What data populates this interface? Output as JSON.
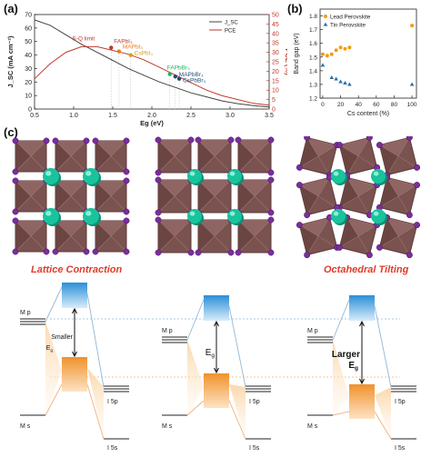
{
  "panels": {
    "a": "(a)",
    "b": "(b)",
    "c": "(c)"
  },
  "chart_data": [
    {
      "type": "line",
      "xlabel": "Eg (eV)",
      "ylabel_left": "J_SC (mA cm⁻²)",
      "ylabel_right": "PCE (%)",
      "xlim": [
        0.5,
        3.5
      ],
      "ylim_left": [
        0,
        70
      ],
      "ylim_right": [
        0,
        50
      ],
      "xticks": [
        "0.5",
        "1.0",
        "1.5",
        "2.0",
        "2.5",
        "3.0",
        "3.5"
      ],
      "yticks_left": [
        "0",
        "10",
        "20",
        "30",
        "40",
        "50",
        "60",
        "70"
      ],
      "yticks_right": [
        "0",
        "5",
        "10",
        "15",
        "20",
        "25",
        "30",
        "35",
        "40",
        "45",
        "50"
      ],
      "legend": [
        "J_SC",
        "PCE"
      ],
      "series": [
        {
          "name": "J_SC",
          "color": "#444444",
          "axis": "left",
          "x": [
            0.5,
            0.7,
            0.9,
            1.1,
            1.3,
            1.5,
            1.7,
            1.9,
            2.1,
            2.3,
            2.5,
            2.7,
            2.9,
            3.1,
            3.3,
            3.5
          ],
          "y": [
            66,
            62,
            55,
            48,
            42,
            36,
            30,
            25,
            20,
            16,
            12,
            9,
            6,
            4,
            2.5,
            1.5
          ]
        },
        {
          "name": "PCE",
          "color": "#c0392b",
          "axis": "right",
          "x": [
            0.5,
            0.7,
            0.9,
            1.1,
            1.3,
            1.5,
            1.7,
            1.9,
            2.1,
            2.3,
            2.5,
            2.7,
            2.9,
            3.1,
            3.3,
            3.5
          ],
          "y": [
            16,
            24,
            30,
            33,
            33,
            31,
            29,
            26,
            22,
            18,
            14,
            10,
            7,
            5,
            3,
            2
          ]
        }
      ],
      "annotations": [
        {
          "label": "S-Q limit",
          "x": 1.34,
          "y": 33.5,
          "color": "#c0392b"
        },
        {
          "label": "FAPbI₃",
          "x": 1.48,
          "y": 32.5,
          "color": "#c0392b"
        },
        {
          "label": "MAPbI₃",
          "x": 1.58,
          "y": 30.5,
          "color": "#e67e22"
        },
        {
          "label": "CsPbI₃",
          "x": 1.73,
          "y": 28.5,
          "color": "#d4a017"
        },
        {
          "label": "FAPbBr₃",
          "x": 2.23,
          "y": 18.5,
          "color": "#27ae60"
        },
        {
          "label": "MAPbBr₃",
          "x": 2.3,
          "y": 17.2,
          "color": "#1f4e79"
        },
        {
          "label": "CsPbBr₃",
          "x": 2.35,
          "y": 16.0,
          "color": "#1f4e79"
        }
      ]
    },
    {
      "type": "scatter",
      "xlabel": "Cs content (%)",
      "ylabel": "Band gap (eV)",
      "xlim": [
        -3,
        105
      ],
      "ylim": [
        1.2,
        1.85
      ],
      "xticks": [
        "0",
        "20",
        "40",
        "60",
        "80",
        "100"
      ],
      "yticks": [
        "1.2",
        "1.3",
        "1.4",
        "1.5",
        "1.6",
        "1.7",
        "1.8"
      ],
      "legend": [
        "Lead Perovskite",
        "Tin Perovskite"
      ],
      "series": [
        {
          "name": "Lead Perovskite",
          "color": "#f39c12",
          "marker": "circle",
          "x": [
            0,
            5,
            10,
            15,
            20,
            25,
            30,
            100
          ],
          "y": [
            1.52,
            1.51,
            1.52,
            1.55,
            1.57,
            1.56,
            1.57,
            1.73
          ]
        },
        {
          "name": "Tin Perovskite",
          "color": "#2c6ea5",
          "marker": "triangle",
          "x": [
            0,
            10,
            15,
            20,
            25,
            30,
            100
          ],
          "y": [
            1.44,
            1.35,
            1.34,
            1.32,
            1.31,
            1.3,
            1.3
          ]
        }
      ]
    }
  ],
  "panel_c": {
    "title_left": "Lattice Contraction",
    "title_right": "Octahedral Tilting",
    "level_mp": "M p",
    "level_ms": "M s",
    "level_i5p": "I 5p",
    "level_i5s": "I 5s",
    "gap_symbol": "E",
    "gap_sub": "g",
    "label_smaller": "Smaller",
    "label_larger": "Larger"
  }
}
